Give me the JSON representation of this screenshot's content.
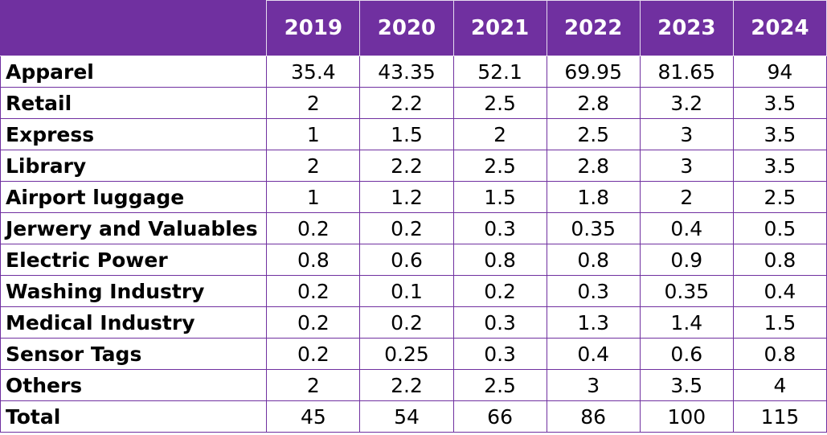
{
  "chart_data": {
    "type": "table",
    "columns": [
      "",
      "2019",
      "2020",
      "2021",
      "2022",
      "2023",
      "2024"
    ],
    "rows": [
      {
        "label": "Apparel",
        "values": [
          "35.4",
          "43.35",
          "52.1",
          "69.95",
          "81.65",
          "94"
        ]
      },
      {
        "label": "Retail",
        "values": [
          "2",
          "2.2",
          "2.5",
          "2.8",
          "3.2",
          "3.5"
        ]
      },
      {
        "label": "Express",
        "values": [
          "1",
          "1.5",
          "2",
          "2.5",
          "3",
          "3.5"
        ]
      },
      {
        "label": "Library",
        "values": [
          "2",
          "2.2",
          "2.5",
          "2.8",
          "3",
          "3.5"
        ]
      },
      {
        "label": "Airport luggage",
        "values": [
          "1",
          "1.2",
          "1.5",
          "1.8",
          "2",
          "2.5"
        ]
      },
      {
        "label": "Jerwery and Valuables",
        "values": [
          "0.2",
          "0.2",
          "0.3",
          "0.35",
          "0.4",
          "0.5"
        ]
      },
      {
        "label": "Electric Power",
        "values": [
          "0.8",
          "0.6",
          "0.8",
          "0.8",
          "0.9",
          "0.8"
        ]
      },
      {
        "label": "Washing Industry",
        "values": [
          "0.2",
          "0.1",
          "0.2",
          "0.3",
          "0.35",
          "0.4"
        ]
      },
      {
        "label": "Medical Industry",
        "values": [
          "0.2",
          "0.2",
          "0.3",
          "1.3",
          "1.4",
          "1.5"
        ]
      },
      {
        "label": "Sensor Tags",
        "values": [
          "0.2",
          "0.25",
          "0.3",
          "0.4",
          "0.6",
          "0.8"
        ]
      },
      {
        "label": "Others",
        "values": [
          "2",
          "2.2",
          "2.5",
          "3",
          "3.5",
          "4"
        ]
      },
      {
        "label": "Total",
        "values": [
          "45",
          "54",
          "66",
          "86",
          "100",
          "115"
        ]
      }
    ]
  },
  "colors": {
    "header_background": "#7030A0",
    "header_text": "#FFFFFF",
    "grid": "#7030A0"
  }
}
